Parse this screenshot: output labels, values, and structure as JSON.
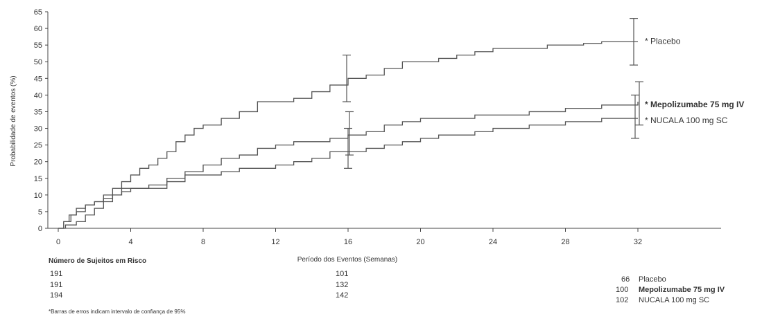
{
  "chart_data": {
    "type": "line",
    "xlabel": "Período dos Eventos (Semanas)",
    "ylabel": "Probabilidade de eventos (%)",
    "xlim": [
      -2,
      38
    ],
    "ylim": [
      0,
      65
    ],
    "x_ticks": [
      0,
      4,
      8,
      12,
      16,
      20,
      24,
      28,
      32
    ],
    "y_ticks": [
      0,
      5,
      10,
      15,
      20,
      25,
      30,
      35,
      40,
      45,
      50,
      55,
      60,
      65
    ],
    "line_style": "step",
    "series": [
      {
        "name": "Placebo",
        "label": "* Placebo",
        "bold": false,
        "points": [
          [
            0,
            0
          ],
          [
            0.3,
            2
          ],
          [
            0.6,
            4
          ],
          [
            1,
            6
          ],
          [
            1.5,
            7
          ],
          [
            2,
            8
          ],
          [
            2.5,
            10
          ],
          [
            3,
            12
          ],
          [
            3.5,
            14
          ],
          [
            4,
            16
          ],
          [
            4.5,
            18
          ],
          [
            5,
            19
          ],
          [
            5.5,
            21
          ],
          [
            6,
            23
          ],
          [
            6.5,
            26
          ],
          [
            7,
            28
          ],
          [
            7.5,
            30
          ],
          [
            8,
            31
          ],
          [
            9,
            33
          ],
          [
            10,
            35
          ],
          [
            11,
            38
          ],
          [
            12,
            38
          ],
          [
            13,
            39
          ],
          [
            14,
            41
          ],
          [
            15,
            43
          ],
          [
            16,
            45
          ],
          [
            17,
            46
          ],
          [
            18,
            48
          ],
          [
            19,
            50
          ],
          [
            20,
            50
          ],
          [
            21,
            51
          ],
          [
            22,
            52
          ],
          [
            23,
            53
          ],
          [
            24,
            54
          ],
          [
            26,
            54
          ],
          [
            27,
            55
          ],
          [
            28,
            55
          ],
          [
            29,
            55.5
          ],
          [
            30,
            56
          ],
          [
            32,
            56
          ]
        ],
        "error_bars": [
          {
            "x": 16,
            "low": 38,
            "high": 52
          },
          {
            "x": 32,
            "low": 49,
            "high": 63
          }
        ]
      },
      {
        "name": "Mepolizumabe 75 mg IV",
        "label": "* Mepolizumabe 75 mg IV",
        "bold": true,
        "points": [
          [
            0,
            0
          ],
          [
            0.3,
            2
          ],
          [
            0.7,
            4
          ],
          [
            1,
            5
          ],
          [
            1.5,
            7
          ],
          [
            2,
            8
          ],
          [
            2.5,
            9
          ],
          [
            3,
            10
          ],
          [
            3.5,
            11
          ],
          [
            4,
            12
          ],
          [
            5,
            13
          ],
          [
            6,
            15
          ],
          [
            7,
            17
          ],
          [
            8,
            19
          ],
          [
            9,
            21
          ],
          [
            10,
            22
          ],
          [
            11,
            24
          ],
          [
            12,
            25
          ],
          [
            13,
            26
          ],
          [
            14,
            26
          ],
          [
            15,
            27
          ],
          [
            16,
            28
          ],
          [
            17,
            29
          ],
          [
            18,
            31
          ],
          [
            19,
            32
          ],
          [
            20,
            33
          ],
          [
            22,
            33
          ],
          [
            23,
            34
          ],
          [
            24,
            34
          ],
          [
            26,
            35
          ],
          [
            28,
            36
          ],
          [
            30,
            37
          ],
          [
            31,
            37
          ],
          [
            32,
            38
          ]
        ],
        "error_bars": [
          {
            "x": 16,
            "low": 22,
            "high": 35
          },
          {
            "x": 32,
            "low": 31,
            "high": 44
          }
        ]
      },
      {
        "name": "NUCALA 100 mg SC",
        "label": "* NUCALA 100 mg SC",
        "bold": false,
        "points": [
          [
            0,
            0
          ],
          [
            0.4,
            1
          ],
          [
            1,
            2
          ],
          [
            1.5,
            4
          ],
          [
            2,
            6
          ],
          [
            2.5,
            8
          ],
          [
            3,
            10
          ],
          [
            3.5,
            12
          ],
          [
            4,
            12
          ],
          [
            5,
            12
          ],
          [
            6,
            14
          ],
          [
            7,
            16
          ],
          [
            8,
            16
          ],
          [
            9,
            17
          ],
          [
            10,
            18
          ],
          [
            11,
            18
          ],
          [
            12,
            19
          ],
          [
            13,
            20
          ],
          [
            14,
            21
          ],
          [
            15,
            23
          ],
          [
            16,
            23
          ],
          [
            17,
            24
          ],
          [
            18,
            25
          ],
          [
            19,
            26
          ],
          [
            20,
            27
          ],
          [
            21,
            28
          ],
          [
            22,
            28
          ],
          [
            23,
            29
          ],
          [
            24,
            30
          ],
          [
            25,
            30
          ],
          [
            26,
            31
          ],
          [
            28,
            32
          ],
          [
            30,
            33
          ],
          [
            32,
            33
          ]
        ],
        "error_bars": [
          {
            "x": 16,
            "low": 18,
            "high": 30
          },
          {
            "x": 32,
            "low": 27,
            "high": 40
          }
        ]
      }
    ]
  },
  "risk_table": {
    "header": "Número de Sujeitos em Risco",
    "rows": [
      {
        "name": "Placebo",
        "bold": false,
        "w0": "191",
        "w16": "101",
        "w32": "66"
      },
      {
        "name": "Mepolizumabe 75 mg IV",
        "bold": true,
        "w0": "191",
        "w16": "132",
        "w32": "100"
      },
      {
        "name": "NUCALA 100 mg SC",
        "bold": false,
        "w0": "194",
        "w16": "142",
        "w32": "102"
      }
    ]
  },
  "footnote": "*Barras de erros indicam intervalo de confiança de 95%",
  "colors": {
    "line": "#555555",
    "axis": "#444444",
    "text": "#333333"
  }
}
